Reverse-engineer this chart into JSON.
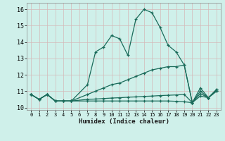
{
  "xlabel": "Humidex (Indice chaleur)",
  "bg_color": "#cff0ea",
  "grid_color_major": "#d4b8b8",
  "grid_color_minor": "#ddd0d0",
  "line_color": "#1a6b5a",
  "x_ticks": [
    0,
    1,
    2,
    3,
    4,
    5,
    6,
    7,
    8,
    9,
    10,
    11,
    12,
    13,
    14,
    15,
    16,
    17,
    18,
    19,
    20,
    21,
    22,
    23
  ],
  "y_ticks": [
    10,
    11,
    12,
    13,
    14,
    15,
    16
  ],
  "xlim": [
    -0.5,
    23.5
  ],
  "ylim": [
    9.85,
    16.4
  ],
  "series": {
    "max": [
      10.8,
      10.5,
      10.8,
      10.4,
      10.4,
      10.4,
      null,
      11.4,
      13.4,
      13.7,
      14.4,
      14.2,
      13.2,
      15.4,
      16.0,
      15.8,
      14.9,
      13.8,
      13.4,
      12.6,
      10.3,
      11.2,
      10.6,
      11.1
    ],
    "mean": [
      10.8,
      10.5,
      10.8,
      10.4,
      10.4,
      10.4,
      null,
      10.8,
      11.0,
      11.2,
      11.4,
      11.5,
      11.7,
      11.9,
      12.1,
      12.3,
      12.4,
      12.5,
      12.5,
      12.6,
      10.3,
      11.0,
      10.6,
      11.1
    ],
    "p25": [
      10.8,
      10.5,
      10.8,
      10.4,
      10.4,
      10.4,
      null,
      10.5,
      10.52,
      10.55,
      10.58,
      10.6,
      10.63,
      10.65,
      10.68,
      10.7,
      10.73,
      10.75,
      10.77,
      10.8,
      10.3,
      10.85,
      10.6,
      11.0
    ],
    "min": [
      10.8,
      10.5,
      10.8,
      10.4,
      10.4,
      10.4,
      null,
      10.4,
      10.4,
      10.4,
      10.4,
      10.4,
      10.4,
      10.4,
      10.4,
      10.4,
      10.4,
      10.4,
      10.38,
      10.35,
      10.3,
      10.7,
      10.6,
      11.0
    ]
  }
}
